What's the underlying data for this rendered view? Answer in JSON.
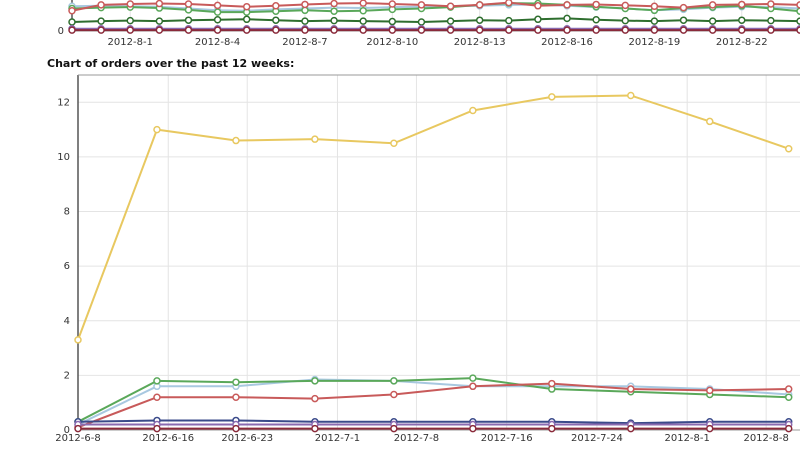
{
  "chart_data": [
    {
      "type": "line",
      "x": [
        "2012-7-30",
        "2012-7-31",
        "2012-8-1",
        "2012-8-2",
        "2012-8-3",
        "2012-8-4",
        "2012-8-5",
        "2012-8-6",
        "2012-8-7",
        "2012-8-8",
        "2012-8-9",
        "2012-8-10",
        "2012-8-11",
        "2012-8-12",
        "2012-8-13",
        "2012-8-14",
        "2012-8-15",
        "2012-8-16",
        "2012-8-17",
        "2012-8-18",
        "2012-8-19",
        "2012-8-20",
        "2012-8-21",
        "2012-8-22",
        "2012-8-23",
        "2012-8-24"
      ],
      "xlim": [
        "2012-7-30",
        "2012-8-24"
      ],
      "xticks": [
        "2012-8-1",
        "2012-8-4",
        "2012-8-7",
        "2012-8-10",
        "2012-8-13",
        "2012-8-16",
        "2012-8-19",
        "2012-8-22"
      ],
      "ylim": [
        0,
        8
      ],
      "yticks": [
        0
      ],
      "grid": true,
      "series": [
        {
          "color": "#a8c8e0",
          "values": [
            5.5,
            5.6,
            5.5,
            5.4,
            5,
            4.6,
            4.5,
            4.8,
            5,
            5.2,
            5.1,
            5.3,
            5.4,
            5.5,
            5.6,
            5.8,
            5.9,
            5.6,
            5.3,
            5,
            4.6,
            4.8,
            5.2,
            5.4,
            5.3,
            5.0
          ]
        },
        {
          "color": "#5aa85a",
          "values": [
            5.0,
            5.2,
            5.3,
            5.1,
            4.7,
            4.2,
            4.2,
            4.4,
            4.6,
            4.4,
            4.5,
            4.8,
            5.0,
            5.3,
            5.8,
            6.2,
            6.1,
            5.8,
            5.4,
            5.0,
            4.6,
            5.1,
            5.3,
            5.6,
            5.0,
            4.4
          ]
        },
        {
          "color": "#c85a5a",
          "values": [
            4.5,
            5.8,
            6,
            6.1,
            6,
            5.7,
            5.4,
            5.6,
            5.9,
            6.1,
            6.2,
            6,
            5.8,
            5.5,
            5.8,
            6.3,
            5.6,
            5.8,
            5.9,
            5.7,
            5.5,
            5.2,
            5.8,
            5.9,
            6,
            5.8
          ]
        },
        {
          "color": "#2e6e2e",
          "values": [
            2,
            2.2,
            2.3,
            2.2,
            2.4,
            2.5,
            2.6,
            2.4,
            2.2,
            2.3,
            2.2,
            2.1,
            2,
            2.2,
            2.4,
            2.3,
            2.6,
            2.8,
            2.5,
            2.3,
            2.2,
            2.4,
            2.2,
            2.4,
            2.3,
            2.2
          ]
        },
        {
          "color": "#8a6ab0",
          "values": [
            0.5,
            0.5,
            0.5,
            0.5,
            0.5,
            0.5,
            0.5,
            0.5,
            0.5,
            0.5,
            0.5,
            0.5,
            0.5,
            0.5,
            0.5,
            0.5,
            0.5,
            0.5,
            0.5,
            0.5,
            0.5,
            0.5,
            0.5,
            0.5,
            0.5,
            0.5
          ]
        },
        {
          "color": "#8a2a3a",
          "values": [
            0.2,
            0.2,
            0.2,
            0.2,
            0.2,
            0.2,
            0.2,
            0.2,
            0.2,
            0.2,
            0.2,
            0.2,
            0.2,
            0.2,
            0.2,
            0.2,
            0.2,
            0.2,
            0.2,
            0.2,
            0.2,
            0.2,
            0.2,
            0.2,
            0.2,
            0.2
          ]
        }
      ]
    },
    {
      "type": "line",
      "title": "Chart of orders over the past 12 weeks:",
      "x": [
        "2012-6-8",
        "2012-6-15",
        "2012-6-22",
        "2012-6-29",
        "2012-7-6",
        "2012-7-13",
        "2012-7-20",
        "2012-7-27",
        "2012-8-3",
        "2012-8-10"
      ],
      "xlim": [
        "2012-6-8",
        "2012-8-11"
      ],
      "xticks": [
        "2012-6-8",
        "2012-6-16",
        "2012-6-23",
        "2012-7-1",
        "2012-7-8",
        "2012-7-16",
        "2012-7-24",
        "2012-8-1",
        "2012-8-8"
      ],
      "ylim": [
        0,
        13
      ],
      "yticks": [
        0,
        2,
        4,
        6,
        8,
        10,
        12
      ],
      "grid": true,
      "series": [
        {
          "color": "#a8c8e0",
          "values": [
            0.2,
            1.6,
            1.6,
            1.85,
            1.8,
            1.6,
            1.6,
            1.6,
            1.5,
            1.3
          ]
        },
        {
          "color": "#5aa85a",
          "values": [
            0.3,
            1.8,
            1.75,
            1.8,
            1.8,
            1.9,
            1.5,
            1.4,
            1.3,
            1.2
          ]
        },
        {
          "color": "#c85a5a",
          "values": [
            0.1,
            1.2,
            1.2,
            1.15,
            1.3,
            1.6,
            1.7,
            1.5,
            1.45,
            1.5
          ]
        },
        {
          "color": "#3a4a8a",
          "values": [
            0.3,
            0.35,
            0.35,
            0.3,
            0.3,
            0.3,
            0.3,
            0.25,
            0.3,
            0.3
          ]
        },
        {
          "color": "#8a6ab0",
          "values": [
            0.2,
            0.2,
            0.2,
            0.2,
            0.2,
            0.2,
            0.2,
            0.2,
            0.2,
            0.2
          ]
        },
        {
          "color": "#8a2a3a",
          "values": [
            0.05,
            0.05,
            0.05,
            0.05,
            0.05,
            0.05,
            0.05,
            0.05,
            0.05,
            0.05
          ]
        },
        {
          "color": "#e8c860",
          "values": [
            3.3,
            11.0,
            10.6,
            10.65,
            10.5,
            11.7,
            12.2,
            12.25,
            11.3,
            10.3
          ]
        }
      ]
    }
  ]
}
